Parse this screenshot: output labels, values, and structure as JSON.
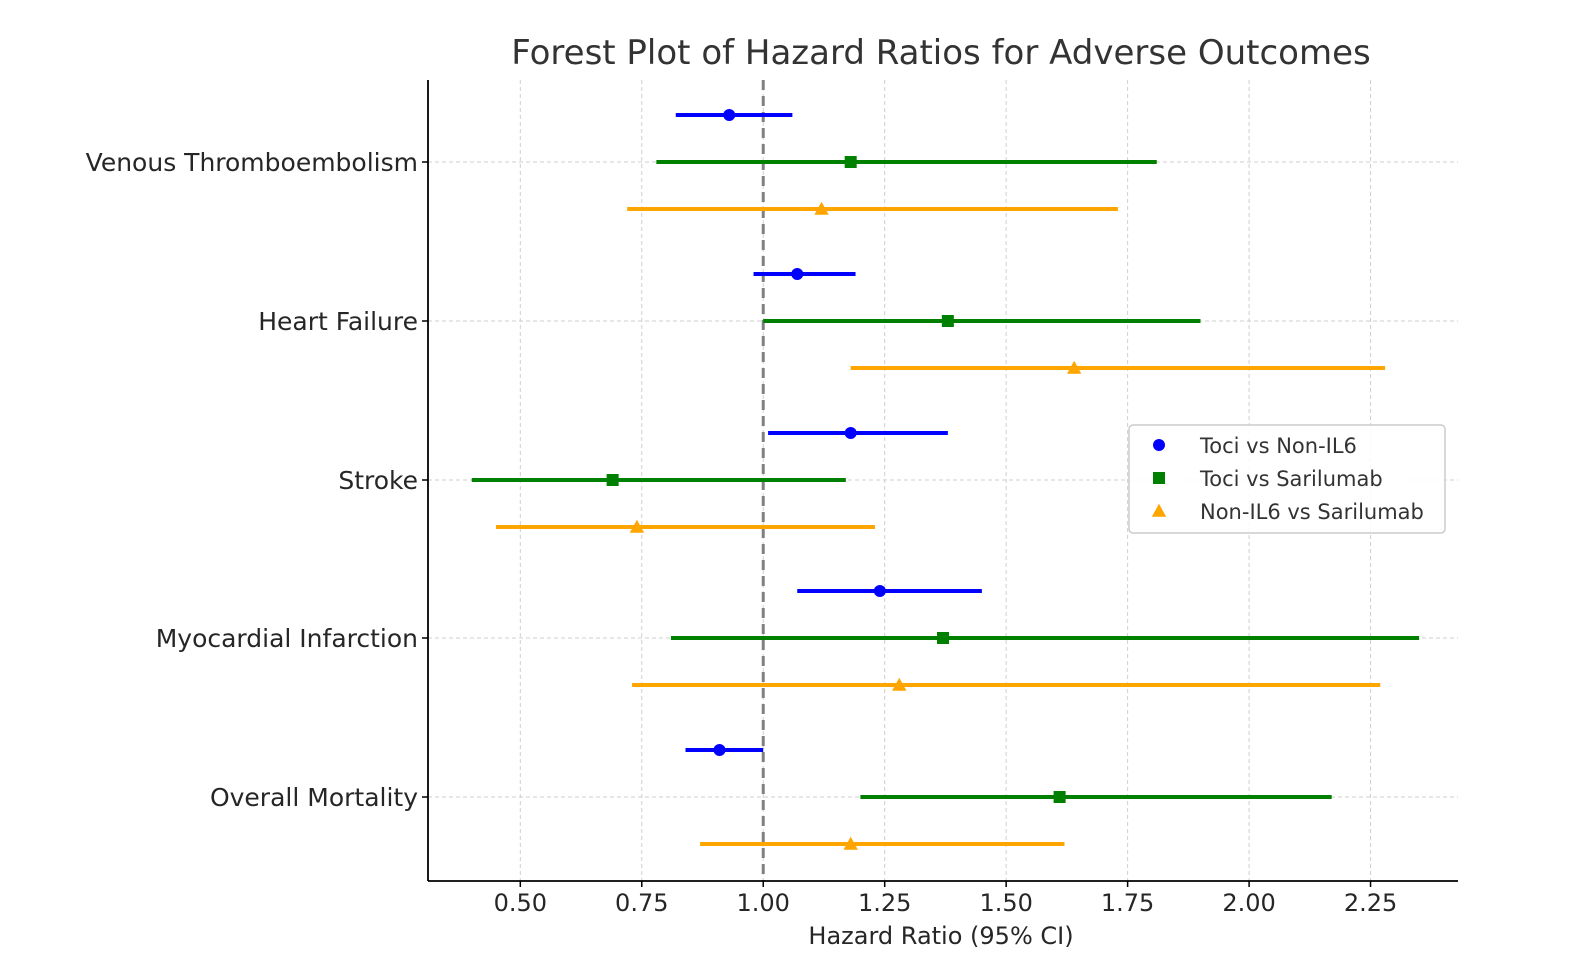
{
  "chart_data": {
    "type": "forest",
    "title": "Forest Plot of Hazard Ratios for Adverse Outcomes",
    "xlabel": "Hazard Ratio (95% CI)",
    "ylabel": "",
    "xlim": [
      0.31,
      2.43
    ],
    "xticks": [
      0.5,
      0.75,
      1.0,
      1.25,
      1.5,
      1.75,
      2.0,
      2.25
    ],
    "xtick_labels": [
      "0.50",
      "0.75",
      "1.00",
      "1.25",
      "1.50",
      "1.75",
      "2.00",
      "2.25"
    ],
    "reference_line": 1.0,
    "grid": true,
    "legend_position": "center-right",
    "categories": [
      "Venous Thromboembolism",
      "Heart Failure",
      "Stroke",
      "Myocardial Infarction",
      "Overall Mortality"
    ],
    "series": [
      {
        "name": "Toci vs Non-IL6",
        "color": "#0000ff",
        "marker": "circle",
        "hr": [
          0.93,
          1.07,
          1.18,
          1.24,
          0.91
        ],
        "lower": [
          0.82,
          0.98,
          1.01,
          1.07,
          0.84
        ],
        "upper": [
          1.06,
          1.19,
          1.38,
          1.45,
          1.0
        ]
      },
      {
        "name": "Toci vs Sarilumab",
        "color": "#008000",
        "marker": "square",
        "hr": [
          1.18,
          1.38,
          0.69,
          1.37,
          1.61
        ],
        "lower": [
          0.78,
          1.0,
          0.4,
          0.81,
          1.2
        ],
        "upper": [
          1.81,
          1.9,
          1.17,
          2.35,
          2.17
        ]
      },
      {
        "name": "Non-IL6 vs Sarilumab",
        "color": "#ffa500",
        "marker": "triangle",
        "hr": [
          1.12,
          1.64,
          0.74,
          1.28,
          1.18
        ],
        "lower": [
          0.72,
          1.18,
          0.45,
          0.73,
          0.87
        ],
        "upper": [
          1.73,
          2.28,
          1.23,
          2.27,
          1.62
        ]
      }
    ]
  }
}
